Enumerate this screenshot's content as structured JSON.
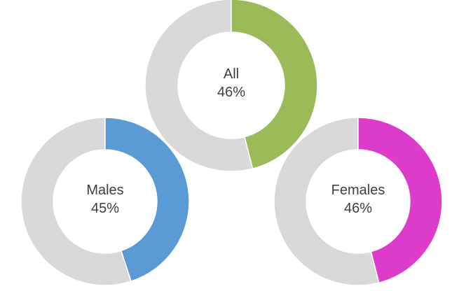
{
  "chart_data": {
    "type": "pie",
    "style": "donut",
    "background_color": "#d9d9d9",
    "separator_color": "#ffffff",
    "label_color": "#404040",
    "charts": [
      {
        "label": "All",
        "value": 46,
        "value_text": "46%",
        "color": "#9bbb59"
      },
      {
        "label": "Males",
        "value": 45,
        "value_text": "45%",
        "color": "#5b9bd5"
      },
      {
        "label": "Females",
        "value": 46,
        "value_text": "46%",
        "color": "#dd3ccb"
      }
    ]
  }
}
